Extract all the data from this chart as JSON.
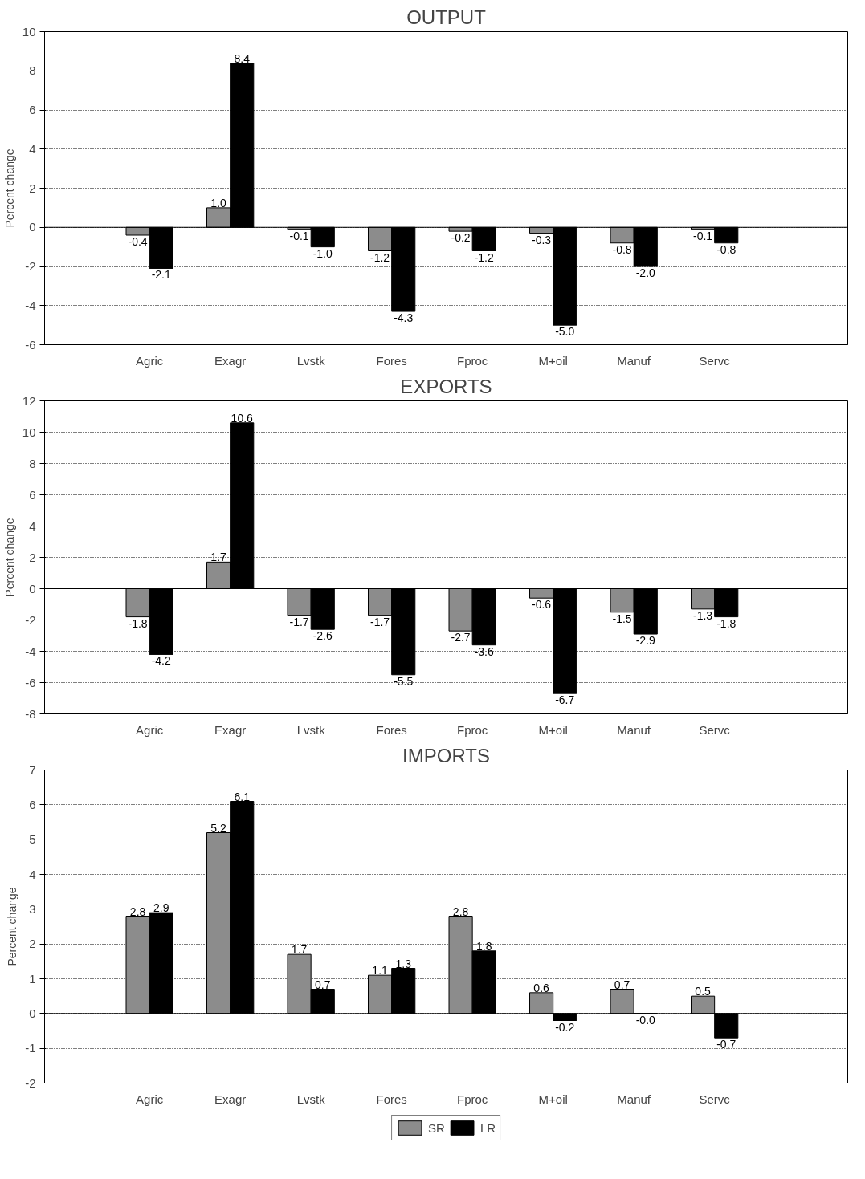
{
  "chart_data": [
    {
      "type": "bar",
      "title": "OUTPUT",
      "ylabel": "Percent change",
      "categories": [
        "Agric",
        "Exagr",
        "Lvstk",
        "Fores",
        "Fproc",
        "M+oil",
        "Manuf",
        "Servc"
      ],
      "ylim": [
        -6,
        10
      ],
      "yticks": [
        -6,
        -4,
        -2,
        0,
        2,
        4,
        6,
        8,
        10
      ],
      "grid": "y",
      "legend": false,
      "series": [
        {
          "color": "#8c8c8c",
          "values": [
            -0.4,
            1.0,
            -0.1,
            -1.2,
            -0.2,
            -0.3,
            -0.8,
            -0.1
          ],
          "value_labels": [
            "-0.4",
            "1.0",
            "-0.1",
            "-1.2",
            "-0.2",
            "-0.3",
            "-0.8",
            "-0.1"
          ]
        },
        {
          "color": "#000000",
          "values": [
            -2.1,
            8.4,
            -1.0,
            -4.3,
            -1.2,
            -5.0,
            -2.0,
            -0.8
          ],
          "value_labels": [
            "-2.1",
            "8.4",
            "-1.0",
            "-4.3",
            "-1.2",
            "-5.0",
            "-2.0",
            "-0.8"
          ]
        }
      ]
    },
    {
      "type": "bar",
      "title": "EXPORTS",
      "ylabel": "Percent change",
      "categories": [
        "Agric",
        "Exagr",
        "Lvstk",
        "Fores",
        "Fproc",
        "M+oil",
        "Manuf",
        "Servc"
      ],
      "ylim": [
        -8,
        12
      ],
      "yticks": [
        -8,
        -6,
        -4,
        -2,
        0,
        2,
        4,
        6,
        8,
        10,
        12
      ],
      "grid": "y",
      "legend": false,
      "series": [
        {
          "color": "#8c8c8c",
          "values": [
            -1.8,
            1.7,
            -1.7,
            -1.7,
            -2.7,
            -0.6,
            -1.5,
            -1.3
          ],
          "value_labels": [
            "-1.8",
            "1.7",
            "-1.7",
            "-1.7",
            "-2.7",
            "-0.6",
            "-1.5",
            "-1.3"
          ]
        },
        {
          "color": "#000000",
          "values": [
            -4.2,
            10.6,
            -2.6,
            -5.5,
            -3.6,
            -6.7,
            -2.9,
            -1.8
          ],
          "value_labels": [
            "-4.2",
            "10.6",
            "-2.6",
            "-5.5",
            "-3.6",
            "-6.7",
            "-2.9",
            "-1.8"
          ]
        }
      ]
    },
    {
      "type": "bar",
      "title": "IMPORTS",
      "ylabel": "Percent change",
      "categories": [
        "Agric",
        "Exagr",
        "Lvstk",
        "Fores",
        "Fproc",
        "M+oil",
        "Manuf",
        "Servc"
      ],
      "ylim": [
        -2,
        7
      ],
      "yticks": [
        -2,
        -1,
        0,
        1,
        2,
        3,
        4,
        5,
        6,
        7
      ],
      "grid": "y",
      "legend": "bottom",
      "series": [
        {
          "name": "SR",
          "color": "#8c8c8c",
          "values": [
            2.8,
            5.2,
            1.7,
            1.1,
            2.8,
            0.6,
            0.7,
            0.5
          ],
          "value_labels": [
            "2.8",
            "5.2",
            "1.7",
            "1.1",
            "2.8",
            "0.6",
            "0.7",
            "0.5"
          ]
        },
        {
          "name": "LR",
          "color": "#000000",
          "values": [
            2.9,
            6.1,
            0.7,
            1.3,
            1.8,
            -0.2,
            -0.0,
            -0.7
          ],
          "value_labels": [
            "2.9",
            "6.1",
            "0.7",
            "1.3",
            "1.8",
            "-0.2",
            "-0.0",
            "-0.7"
          ]
        }
      ]
    }
  ]
}
